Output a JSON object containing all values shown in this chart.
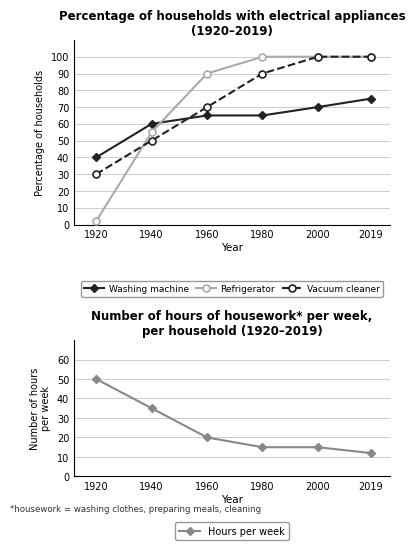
{
  "years": [
    1920,
    1940,
    1960,
    1980,
    2000,
    2019
  ],
  "washing_machine": [
    40,
    60,
    65,
    65,
    70,
    75
  ],
  "refrigerator": [
    2,
    55,
    90,
    100,
    100,
    100
  ],
  "vacuum_cleaner": [
    30,
    50,
    70,
    90,
    100,
    100
  ],
  "hours_per_week": [
    50,
    35,
    20,
    15,
    15,
    12
  ],
  "chart1_title": "Percentage of households with electrical appliances\n(1920–2019)",
  "chart2_title": "Number of hours of housework* per week,\nper household (1920–2019)",
  "chart1_ylabel": "Percentage of households",
  "chart2_ylabel": "Number of hours\nper week",
  "xlabel": "Year",
  "chart1_ylim": [
    0,
    110
  ],
  "chart2_ylim": [
    0,
    70
  ],
  "chart1_yticks": [
    0,
    10,
    20,
    30,
    40,
    50,
    60,
    70,
    80,
    90,
    100
  ],
  "chart2_yticks": [
    0,
    10,
    20,
    30,
    40,
    50,
    60
  ],
  "footnote": "*housework = washing clothes, preparing meals, cleaning",
  "line_color_wm": "#222222",
  "line_color_ref": "#aaaaaa",
  "line_color_vac": "#222222",
  "line_color_hours": "#888888"
}
